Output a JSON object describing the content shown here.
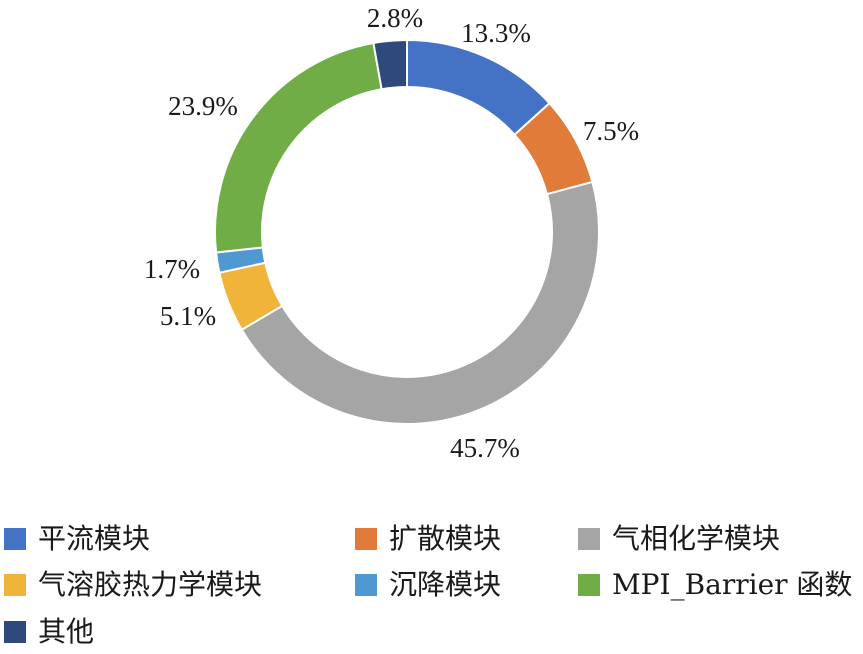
{
  "chart_data": {
    "type": "pie",
    "variant": "donut",
    "categories": [
      "平流模块",
      "扩散模块",
      "气相化学模块",
      "气溶胶热力学模块",
      "沉降模块",
      "MPI_Barrier 函数",
      "其他"
    ],
    "values": [
      13.3,
      7.5,
      45.7,
      5.1,
      1.7,
      23.9,
      2.8
    ],
    "unit": "%",
    "data_labels": [
      "13.3%",
      "7.5%",
      "45.7%",
      "5.1%",
      "1.7%",
      "23.9%",
      "2.8%"
    ],
    "colors": [
      "#4472C4",
      "#E07B39",
      "#A5A5A5",
      "#F0B43A",
      "#4F98D2",
      "#70AD47",
      "#2E4A7C"
    ],
    "start_angle": "12 o'clock",
    "direction": "clockwise",
    "legend_position": "bottom"
  }
}
